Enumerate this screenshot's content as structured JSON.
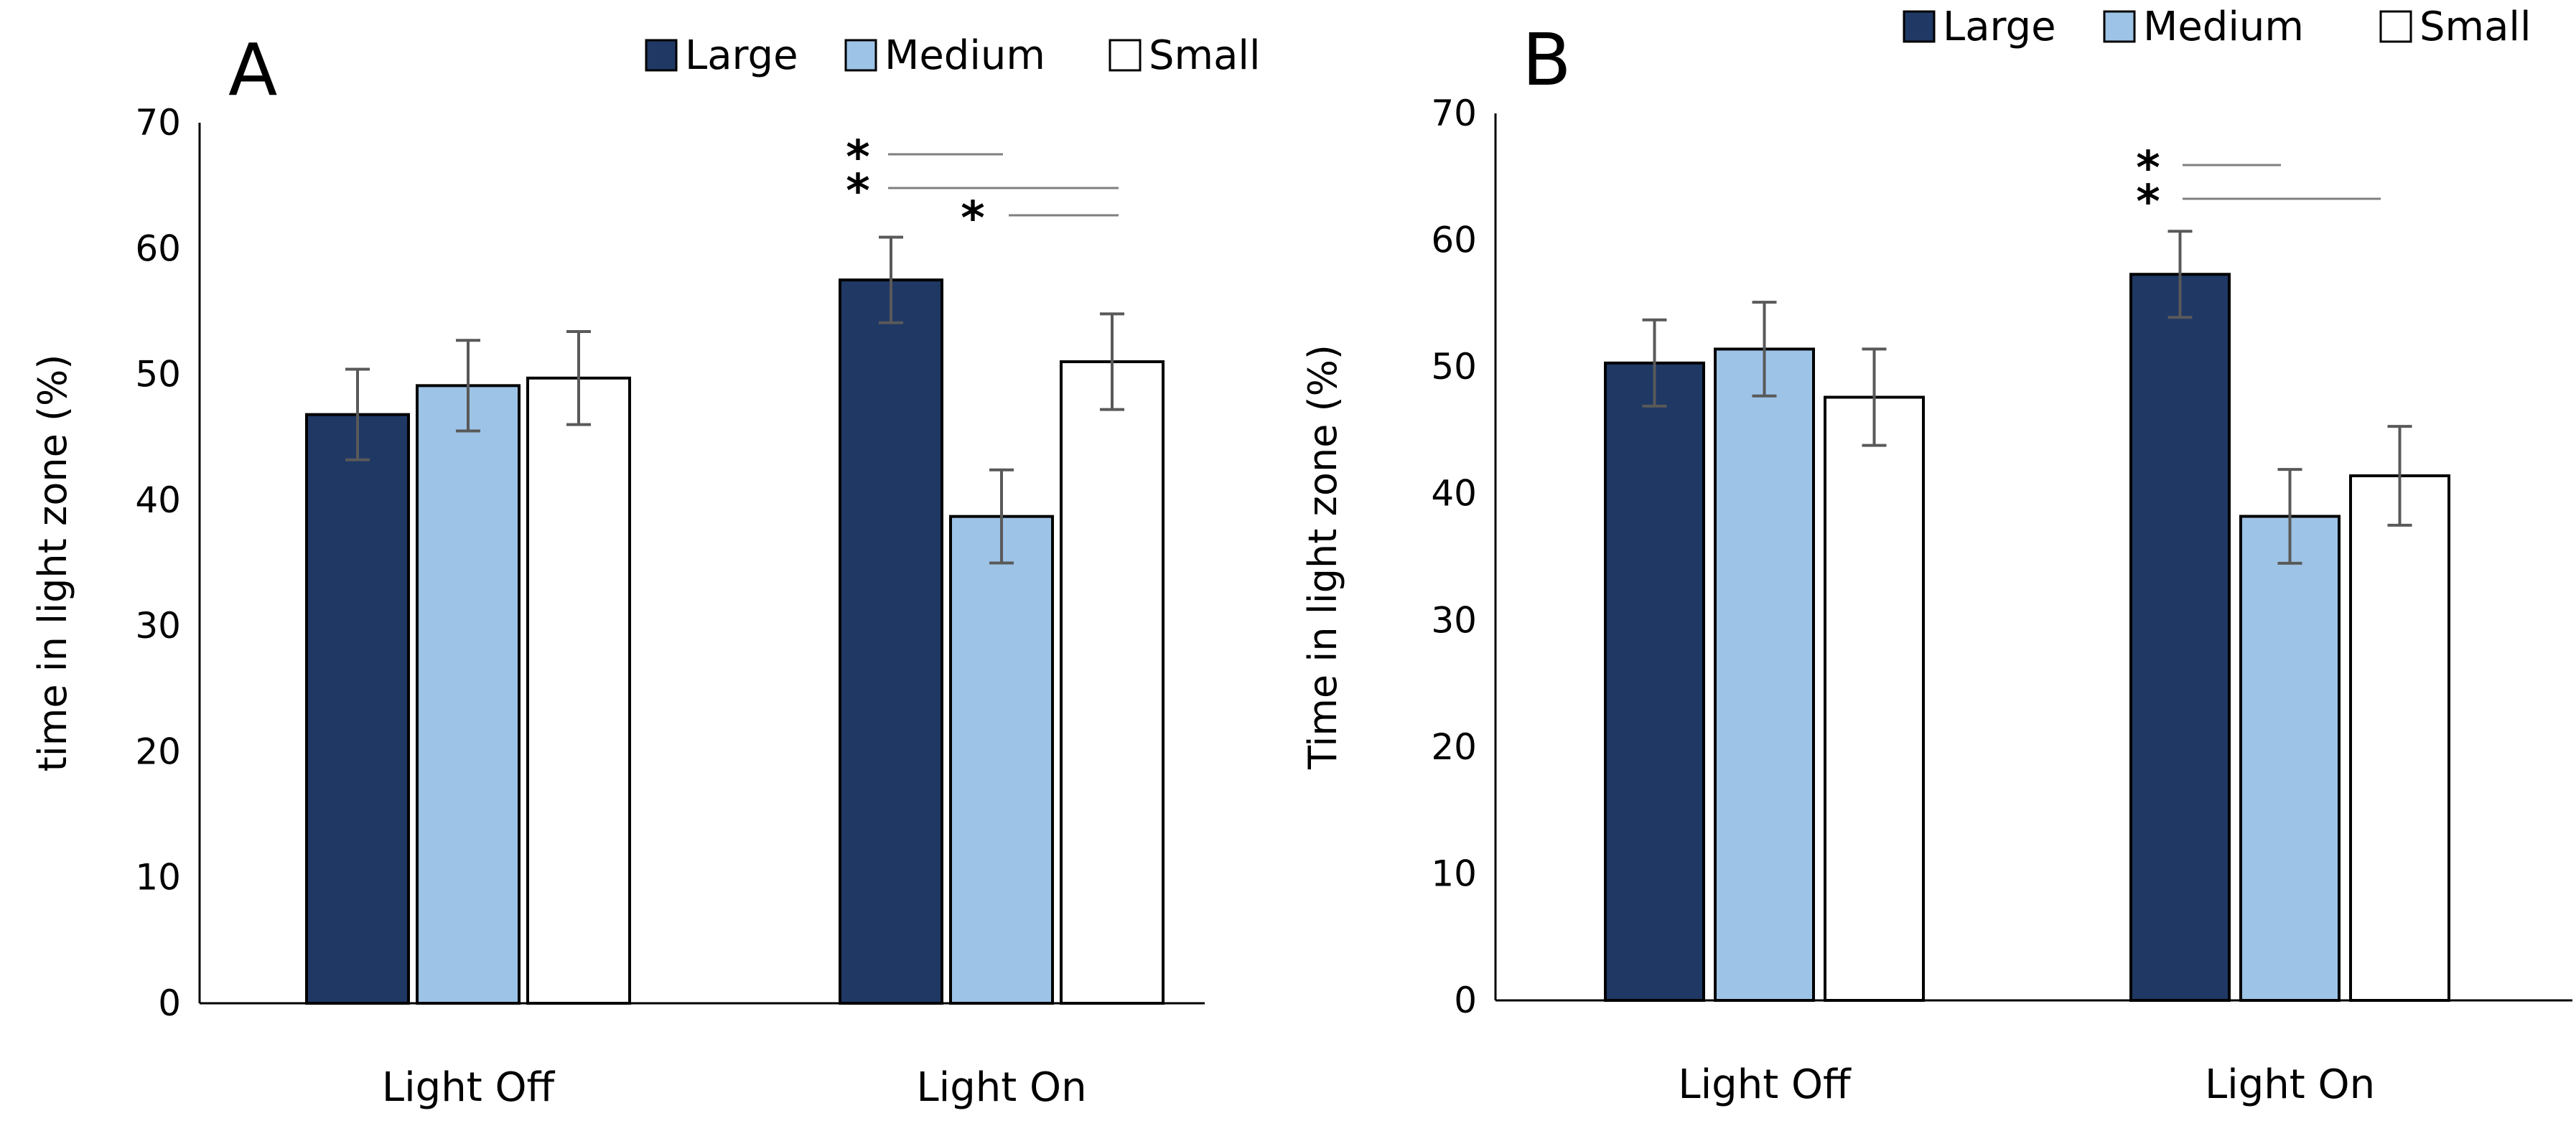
{
  "chart_data": [
    {
      "type": "bar",
      "panel_label": "A",
      "title": "",
      "xlabel": "",
      "ylabel": "time in light zone (%)",
      "ylim": [
        0,
        70
      ],
      "yticks": [
        0,
        10,
        20,
        30,
        40,
        50,
        60,
        70
      ],
      "categories": [
        "Light Off",
        "Light On"
      ],
      "series": [
        {
          "name": "Large",
          "color": "#1f3864",
          "values": [
            46.8,
            57.5
          ],
          "errors": [
            3.6,
            3.4
          ]
        },
        {
          "name": "Medium",
          "color": "#9dc3e6",
          "values": [
            49.1,
            38.7
          ],
          "errors": [
            3.6,
            3.7
          ]
        },
        {
          "name": "Small",
          "color": "#ffffff",
          "values": [
            49.7,
            51.0
          ],
          "errors": [
            3.7,
            3.8
          ]
        }
      ],
      "legend": {
        "position": "top-right",
        "entries": [
          "Large",
          "Medium",
          "Small"
        ]
      },
      "significance": [
        {
          "label": "*",
          "category": 1,
          "from": "Large",
          "to": "Medium"
        },
        {
          "label": "*",
          "category": 1,
          "from": "Large",
          "to": "Small"
        },
        {
          "label": "*",
          "category": 1,
          "from": "Medium",
          "to": "Small"
        }
      ],
      "grid": false
    },
    {
      "type": "bar",
      "panel_label": "B",
      "title": "",
      "xlabel": "",
      "ylabel": "Time in light zone (%)",
      "ylim": [
        0,
        70
      ],
      "yticks": [
        0,
        10,
        20,
        30,
        40,
        50,
        60,
        70
      ],
      "categories": [
        "Light Off",
        "Light On"
      ],
      "series": [
        {
          "name": "Large",
          "color": "#1f3864",
          "values": [
            50.3,
            57.3
          ],
          "errors": [
            3.4,
            3.4
          ]
        },
        {
          "name": "Medium",
          "color": "#9dc3e6",
          "values": [
            51.4,
            38.2
          ],
          "errors": [
            3.7,
            3.7
          ]
        },
        {
          "name": "Small",
          "color": "#ffffff",
          "values": [
            47.6,
            41.4
          ],
          "errors": [
            3.8,
            3.9
          ]
        }
      ],
      "legend": {
        "position": "top-right",
        "entries": [
          "Large",
          "Medium",
          "Small"
        ]
      },
      "significance": [
        {
          "label": "*",
          "category": 1,
          "from": "Large",
          "to": "Medium"
        },
        {
          "label": "*",
          "category": 1,
          "from": "Large",
          "to": "Small"
        }
      ],
      "grid": false
    }
  ]
}
